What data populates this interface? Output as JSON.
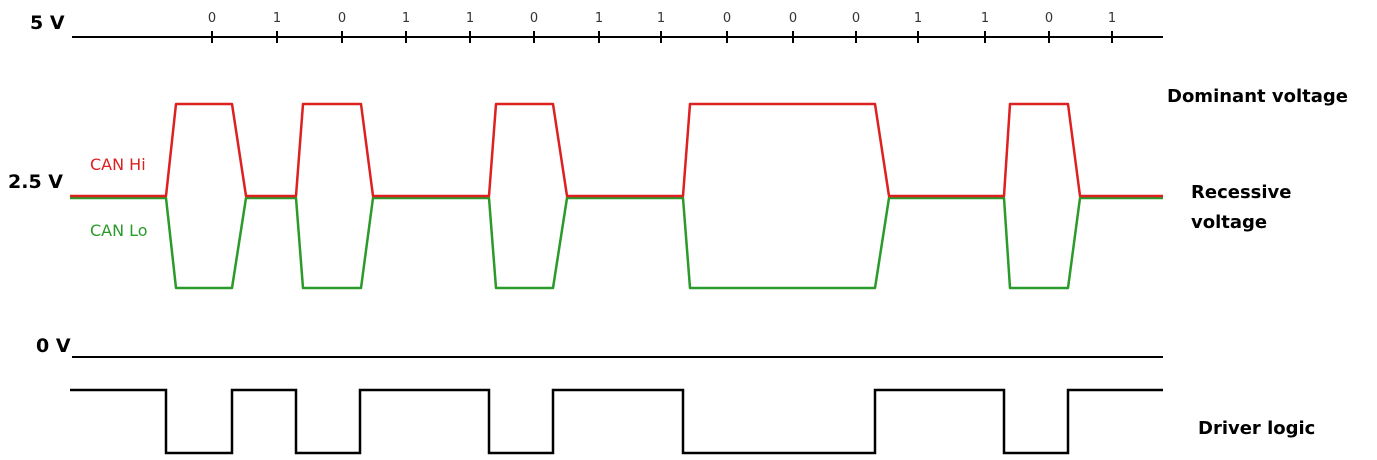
{
  "axis_labels": {
    "top": "5 V",
    "mid": "2.5 V",
    "bottom": "0 V"
  },
  "bits": [
    "0",
    "1",
    "0",
    "1",
    "1",
    "0",
    "1",
    "1",
    "0",
    "0",
    "0",
    "1",
    "1",
    "0",
    "1"
  ],
  "signals": {
    "can_hi": {
      "label": "CAN Hi",
      "color": "#dd2020"
    },
    "can_lo": {
      "label": "CAN Lo",
      "color": "#2a9a2a"
    }
  },
  "annotations": {
    "dominant": "Dominant voltage",
    "recessive_line1": "Recessive",
    "recessive_line2": "voltage",
    "driver": "Driver logic"
  }
}
